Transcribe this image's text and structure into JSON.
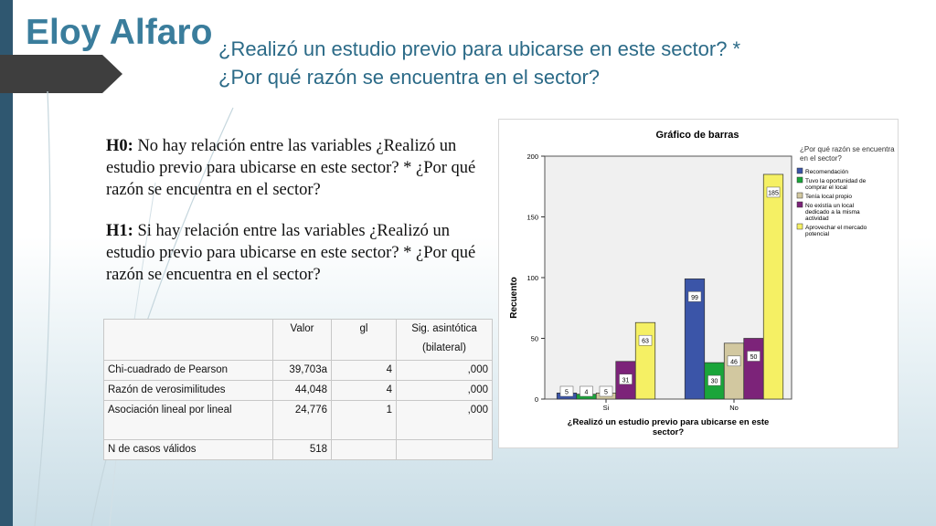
{
  "slide": {
    "title": "Eloy Alfaro",
    "subtitle_line1": "¿Realizó un estudio previo para ubicarse en este sector? *",
    "subtitle_line2": "¿Por qué razón se encuentra en el sector?"
  },
  "hypotheses": {
    "h0_label": "H0:",
    "h0_text": " No hay relación entre las variables ¿Realizó un estudio previo para ubicarse en este sector? * ¿Por qué razón se encuentra en el sector?",
    "h1_label": "H1:",
    "h1_text": " Si hay relación entre las variables ¿Realizó un estudio previo para ubicarse en este sector? * ¿Por qué razón se encuentra en el sector?"
  },
  "table": {
    "headers": [
      "",
      "Valor",
      "gl",
      "Sig. asintótica (bilateral)"
    ],
    "rows": [
      [
        "Chi-cuadrado de Pearson",
        "39,703a",
        "4",
        ",000"
      ],
      [
        "Razón de verosimilitudes",
        "44,048",
        "4",
        ",000"
      ],
      [
        "Asociación lineal por lineal",
        "24,776",
        "1",
        ",000"
      ],
      [
        "N de casos válidos",
        "518",
        "",
        ""
      ]
    ]
  },
  "chart_data": {
    "type": "bar",
    "title": "Gráfico de barras",
    "xlabel": "¿Realizó un estudio previo para ubicarse en este sector?",
    "ylabel": "Recuento",
    "categories": [
      "Si",
      "No"
    ],
    "ylim": [
      0,
      200
    ],
    "yticks": [
      "0",
      "50",
      "100",
      "150",
      "200"
    ],
    "legend_title": "¿Por qué razón se encuentra en el sector?",
    "legend_position": "right",
    "grid": false,
    "series": [
      {
        "name": "Recomendación",
        "color": "#3b55a8",
        "values": [
          5,
          99
        ]
      },
      {
        "name": "Tuvo la oportunidad de comprar el local",
        "color": "#1aa53a",
        "values": [
          4,
          30
        ]
      },
      {
        "name": "Tenía local propio",
        "color": "#d2c8a0",
        "values": [
          5,
          46
        ]
      },
      {
        "name": "No existía un local dedicado a la misma actividad",
        "color": "#7c2379",
        "values": [
          31,
          50
        ]
      },
      {
        "name": "Aprovechar el mercado potencial",
        "color": "#f5f064",
        "values": [
          63,
          185
        ]
      }
    ]
  }
}
